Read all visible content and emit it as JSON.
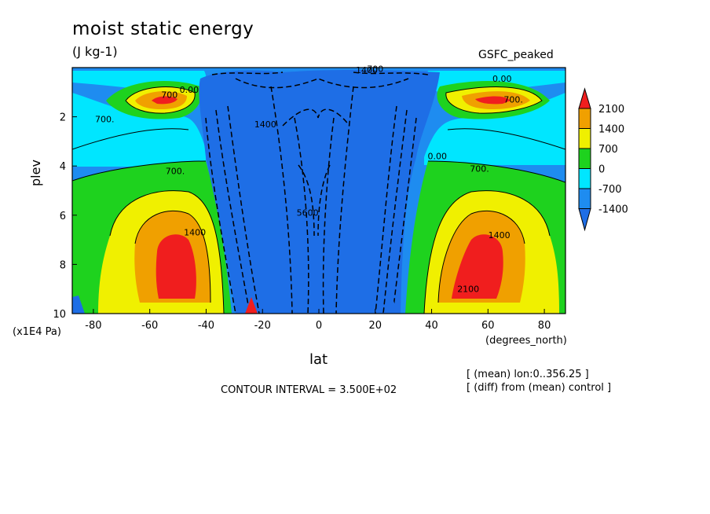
{
  "header": {
    "title": "moist static energy",
    "units": "(J kg-1)",
    "dataset": "GSFC_peaked"
  },
  "footer": {
    "contour_interval": "CONTOUR INTERVAL = 3.500E+02",
    "mean_note": "[ (mean) lon:0..356.25 ]",
    "diff_note": "[ (diff) from (mean) control ]"
  },
  "colors": {
    "lt_m1400": "#1e6ee6",
    "m1400_m700": "#1e8cf0",
    "m700_0": "#00e6ff",
    "0_700": "#1ed21e",
    "700_1400": "#f0f000",
    "1400_2100": "#f0a000",
    "gt_2100": "#f01e1e"
  },
  "chart_data": {
    "type": "contour",
    "title": "moist static energy",
    "subtitle": "(J kg-1)",
    "xlabel": "lat",
    "x_units": "(degrees_north)",
    "ylabel": "plev",
    "y_units": "(x1E4 Pa)",
    "xlim": [
      -87.5,
      87.5
    ],
    "ylim": [
      10,
      0
    ],
    "x_ticks": [
      -80,
      -60,
      -40,
      -20,
      0,
      20,
      40,
      60,
      80
    ],
    "y_ticks": [
      2,
      4,
      6,
      8,
      10
    ],
    "contour_interval": 350,
    "colorbar": {
      "levels": [
        -1400,
        -700,
        0,
        700,
        1400,
        2100
      ],
      "labels": [
        "2100",
        "1400",
        "700",
        "0",
        "-700",
        "-1400"
      ]
    },
    "contour_labels": [
      {
        "text": "700",
        "lat": 20,
        "plev": 0.05
      },
      {
        "text": "1400",
        "lat": 17,
        "plev": 0.1
      },
      {
        "text": "0.00",
        "lat": 65,
        "plev": 0.45
      },
      {
        "text": "700",
        "lat": -53,
        "plev": 1.1
      },
      {
        "text": "0.00",
        "lat": -46,
        "plev": 0.9
      },
      {
        "text": "700.",
        "lat": 69,
        "plev": 1.3
      },
      {
        "text": "700.",
        "lat": -76,
        "plev": 2.1
      },
      {
        "text": "1400",
        "lat": -19,
        "plev": 2.3
      },
      {
        "text": "700.",
        "lat": -51,
        "plev": 4.2
      },
      {
        "text": "0.00",
        "lat": 42,
        "plev": 3.6
      },
      {
        "text": "700.",
        "lat": 57,
        "plev": 4.1
      },
      {
        "text": "5600",
        "lat": -4,
        "plev": 5.9
      },
      {
        "text": "1400",
        "lat": -44,
        "plev": 6.7
      },
      {
        "text": "1400",
        "lat": 64,
        "plev": 6.8
      },
      {
        "text": "2100",
        "lat": 53,
        "plev": 9.0
      }
    ]
  }
}
